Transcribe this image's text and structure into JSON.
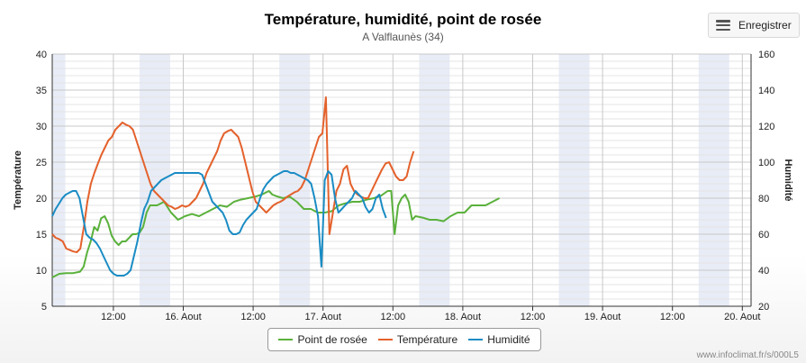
{
  "export_button": {
    "label": "Enregistrer",
    "icon": "menu-icon"
  },
  "credit": "www.infoclimat.fr/s/000L5",
  "chart_data": {
    "type": "line",
    "title": "Température, humidité, point de rosée",
    "subtitle": "A Valflaunès (34)",
    "x_range_hours": [
      0,
      126
    ],
    "x_unit": "hours from start of 15 Aout (approx.)",
    "x_ticks": [
      {
        "x": 21,
        "label": "12:00"
      },
      {
        "x": 45,
        "label": "16. Aout"
      },
      {
        "x": 69,
        "label": "12:00"
      },
      {
        "x": 93,
        "label": "17. Aout"
      },
      {
        "x": 117,
        "label": "12:00"
      },
      {
        "x": 141,
        "label": "18. Aout"
      },
      {
        "x": 165,
        "label": "12:00"
      },
      {
        "x": 189,
        "label": "19. Aout"
      },
      {
        "x": 213,
        "label": "12:00"
      },
      {
        "x": 237,
        "label": "20. Aout"
      }
    ],
    "x_max": 240,
    "night_bands": [
      [
        0,
        4.5
      ],
      [
        30,
        40.5
      ],
      [
        78,
        88.5
      ],
      [
        126,
        136.5
      ],
      [
        174,
        184.5
      ],
      [
        222,
        232.5
      ]
    ],
    "y_left": {
      "label": "Température",
      "min": 5,
      "max": 40,
      "ticks": [
        5,
        10,
        15,
        20,
        25,
        30,
        35,
        40
      ]
    },
    "y_right": {
      "label": "Humidité",
      "min": 20,
      "max": 160,
      "ticks": [
        20,
        40,
        60,
        80,
        100,
        120,
        140,
        160
      ]
    },
    "grid": true,
    "legend_position": "bottom-center",
    "series": [
      {
        "name": "Point de rosée",
        "color": "#5ab13c",
        "axis": "left",
        "points": [
          [
            0,
            9
          ],
          [
            2,
            9.5
          ],
          [
            4,
            9.6
          ],
          [
            6,
            9.6
          ],
          [
            8,
            9.8
          ],
          [
            9,
            10.5
          ],
          [
            10,
            12.5
          ],
          [
            11,
            14
          ],
          [
            12,
            16
          ],
          [
            13,
            15.5
          ],
          [
            14,
            17.2
          ],
          [
            15,
            17.5
          ],
          [
            16,
            16.5
          ],
          [
            17,
            14.8
          ],
          [
            18,
            14
          ],
          [
            19,
            13.5
          ],
          [
            20,
            14
          ],
          [
            21,
            14
          ],
          [
            22,
            14.5
          ],
          [
            23,
            15
          ],
          [
            24,
            15
          ],
          [
            25,
            15.2
          ],
          [
            26,
            16
          ],
          [
            27,
            18
          ],
          [
            28,
            19
          ],
          [
            30,
            19
          ],
          [
            32,
            19.5
          ],
          [
            34,
            18
          ],
          [
            35,
            17.5
          ],
          [
            36,
            17
          ],
          [
            38,
            17.5
          ],
          [
            40,
            17.8
          ],
          [
            42,
            17.5
          ],
          [
            44,
            18
          ],
          [
            46,
            18.5
          ],
          [
            48,
            19
          ],
          [
            50,
            18.8
          ],
          [
            52,
            19.5
          ],
          [
            54,
            19.8
          ],
          [
            56,
            20
          ],
          [
            58,
            20.2
          ],
          [
            60,
            20.5
          ],
          [
            62,
            21
          ],
          [
            63,
            20.5
          ],
          [
            64,
            20.3
          ],
          [
            66,
            20
          ],
          [
            68,
            20.2
          ],
          [
            70,
            19.5
          ],
          [
            72,
            18.5
          ],
          [
            74,
            18.5
          ],
          [
            76,
            18
          ],
          [
            78,
            18
          ],
          [
            80,
            18.2
          ],
          [
            82,
            19
          ],
          [
            84,
            19.3
          ],
          [
            86,
            19.5
          ],
          [
            88,
            19.5
          ],
          [
            90,
            19.8
          ],
          [
            92,
            20
          ],
          [
            94,
            20.3
          ],
          [
            96,
            21
          ],
          [
            97,
            21
          ],
          [
            98,
            15
          ],
          [
            99,
            19
          ],
          [
            100,
            20
          ],
          [
            101,
            20.5
          ],
          [
            102,
            19.5
          ],
          [
            103,
            17
          ],
          [
            104,
            17.5
          ],
          [
            106,
            17.3
          ],
          [
            108,
            17
          ],
          [
            110,
            17
          ],
          [
            112,
            16.8
          ],
          [
            114,
            17.5
          ],
          [
            116,
            18
          ],
          [
            118,
            18
          ],
          [
            119,
            18.5
          ],
          [
            120,
            19
          ],
          [
            122,
            19
          ],
          [
            124,
            19
          ],
          [
            126,
            19.5
          ],
          [
            128,
            20
          ]
        ]
      },
      {
        "name": "Température",
        "color": "#e4612c",
        "axis": "left",
        "points": [
          [
            0,
            15
          ],
          [
            1,
            14.5
          ],
          [
            2,
            14.3
          ],
          [
            3,
            14
          ],
          [
            4,
            13
          ],
          [
            5,
            12.8
          ],
          [
            6,
            12.6
          ],
          [
            7,
            12.5
          ],
          [
            8,
            13
          ],
          [
            9,
            16
          ],
          [
            10,
            19.5
          ],
          [
            11,
            22
          ],
          [
            12,
            23.5
          ],
          [
            13,
            24.8
          ],
          [
            14,
            26
          ],
          [
            15,
            27
          ],
          [
            16,
            28
          ],
          [
            17,
            28.5
          ],
          [
            18,
            29.5
          ],
          [
            19,
            30
          ],
          [
            20,
            30.5
          ],
          [
            21,
            30.2
          ],
          [
            22,
            30
          ],
          [
            23,
            29.5
          ],
          [
            24,
            28
          ],
          [
            25,
            26.5
          ],
          [
            26,
            25
          ],
          [
            27,
            23.5
          ],
          [
            28,
            22
          ],
          [
            29,
            21
          ],
          [
            30,
            20.5
          ],
          [
            31,
            20
          ],
          [
            32,
            19.5
          ],
          [
            33,
            19
          ],
          [
            34,
            18.8
          ],
          [
            35,
            18.5
          ],
          [
            36,
            18.7
          ],
          [
            37,
            19
          ],
          [
            38,
            18.8
          ],
          [
            39,
            19
          ],
          [
            40,
            19.5
          ],
          [
            41,
            20
          ],
          [
            42,
            21
          ],
          [
            43,
            22
          ],
          [
            44,
            23.5
          ],
          [
            45,
            24.5
          ],
          [
            46,
            25.5
          ],
          [
            47,
            26.5
          ],
          [
            48,
            28
          ],
          [
            49,
            29
          ],
          [
            50,
            29.3
          ],
          [
            51,
            29.5
          ],
          [
            52,
            29
          ],
          [
            53,
            28.5
          ],
          [
            54,
            27
          ],
          [
            55,
            25
          ],
          [
            56,
            23
          ],
          [
            57,
            21
          ],
          [
            58,
            19.5
          ],
          [
            59,
            19
          ],
          [
            60,
            18.5
          ],
          [
            61,
            18
          ],
          [
            62,
            18.5
          ],
          [
            63,
            19
          ],
          [
            64,
            19.3
          ],
          [
            65,
            19.5
          ],
          [
            66,
            19.8
          ],
          [
            67,
            20.2
          ],
          [
            68,
            20.5
          ],
          [
            69,
            20.8
          ],
          [
            70,
            21
          ],
          [
            71,
            21.5
          ],
          [
            72,
            22.5
          ],
          [
            73,
            24
          ],
          [
            74,
            25.5
          ],
          [
            75,
            27
          ],
          [
            76,
            28.5
          ],
          [
            77,
            29
          ],
          [
            78,
            34
          ],
          [
            79,
            15
          ],
          [
            80,
            18
          ],
          [
            81,
            21
          ],
          [
            82,
            22
          ],
          [
            83,
            24
          ],
          [
            84,
            24.5
          ],
          [
            85,
            22
          ],
          [
            86,
            21
          ],
          [
            87,
            20.5
          ],
          [
            88,
            20.2
          ],
          [
            89,
            20
          ],
          [
            90,
            20
          ],
          [
            91,
            21
          ],
          [
            92,
            22
          ],
          [
            93,
            23
          ],
          [
            94,
            24
          ],
          [
            95,
            24.8
          ],
          [
            96,
            25
          ],
          [
            97,
            24
          ],
          [
            98,
            23
          ],
          [
            99,
            22.5
          ],
          [
            100,
            22.5
          ],
          [
            101,
            23
          ],
          [
            102,
            25
          ],
          [
            103,
            26.5
          ]
        ],
        "x_scale": 1.205
      },
      {
        "name": "Humidité",
        "color": "#1a8cc4",
        "axis": "right",
        "points": [
          [
            0,
            70
          ],
          [
            1,
            74
          ],
          [
            2,
            77
          ],
          [
            3,
            80
          ],
          [
            4,
            82
          ],
          [
            5,
            83
          ],
          [
            6,
            84
          ],
          [
            7,
            84
          ],
          [
            8,
            80
          ],
          [
            9,
            70
          ],
          [
            10,
            60
          ],
          [
            11,
            58
          ],
          [
            12,
            57
          ],
          [
            13,
            55
          ],
          [
            14,
            52
          ],
          [
            15,
            48
          ],
          [
            16,
            44
          ],
          [
            17,
            40
          ],
          [
            18,
            38
          ],
          [
            19,
            37
          ],
          [
            20,
            37
          ],
          [
            21,
            37
          ],
          [
            22,
            38
          ],
          [
            23,
            40
          ],
          [
            24,
            48
          ],
          [
            25,
            56
          ],
          [
            26,
            66
          ],
          [
            27,
            74
          ],
          [
            28,
            78
          ],
          [
            29,
            84
          ],
          [
            30,
            86
          ],
          [
            31,
            88
          ],
          [
            32,
            90
          ],
          [
            33,
            91
          ],
          [
            34,
            92
          ],
          [
            35,
            93
          ],
          [
            36,
            94
          ],
          [
            37,
            94
          ],
          [
            38,
            94
          ],
          [
            39,
            94
          ],
          [
            40,
            94
          ],
          [
            41,
            94
          ],
          [
            42,
            94
          ],
          [
            43,
            94
          ],
          [
            44,
            93
          ],
          [
            45,
            88
          ],
          [
            46,
            83
          ],
          [
            47,
            78
          ],
          [
            48,
            76
          ],
          [
            49,
            74
          ],
          [
            50,
            72
          ],
          [
            51,
            68
          ],
          [
            52,
            62
          ],
          [
            53,
            60
          ],
          [
            54,
            60
          ],
          [
            55,
            61
          ],
          [
            56,
            65
          ],
          [
            57,
            68
          ],
          [
            58,
            70
          ],
          [
            59,
            72
          ],
          [
            60,
            74
          ],
          [
            61,
            80
          ],
          [
            62,
            85
          ],
          [
            63,
            88
          ],
          [
            64,
            90
          ],
          [
            65,
            92
          ],
          [
            66,
            93
          ],
          [
            67,
            94
          ],
          [
            68,
            95
          ],
          [
            69,
            95
          ],
          [
            70,
            94
          ],
          [
            71,
            94
          ],
          [
            72,
            93
          ],
          [
            73,
            92
          ],
          [
            74,
            91
          ],
          [
            75,
            90
          ],
          [
            76,
            88
          ],
          [
            77,
            80
          ],
          [
            78,
            70
          ],
          [
            79,
            42
          ],
          [
            80,
            90
          ],
          [
            81,
            95
          ],
          [
            82,
            93
          ],
          [
            83,
            80
          ],
          [
            84,
            72
          ],
          [
            85,
            74
          ],
          [
            86,
            76
          ],
          [
            87,
            78
          ],
          [
            88,
            80
          ],
          [
            89,
            84
          ],
          [
            90,
            82
          ],
          [
            91,
            80
          ],
          [
            92,
            75
          ],
          [
            93,
            72
          ],
          [
            94,
            74
          ],
          [
            95,
            80
          ],
          [
            96,
            82
          ],
          [
            97,
            74
          ],
          [
            98,
            69
          ]
        ],
        "x_scale": 1.17
      }
    ]
  }
}
